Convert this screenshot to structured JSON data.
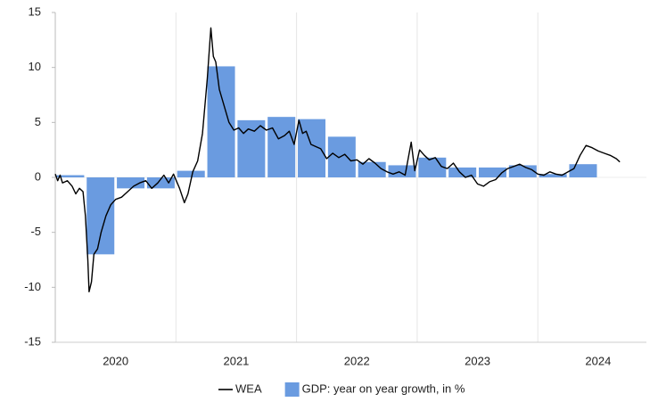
{
  "chart_data": {
    "type": "combo",
    "xlim": [
      2020,
      2024.9
    ],
    "xticks": [
      {
        "value": 2020.5,
        "label": "2020"
      },
      {
        "value": 2021.5,
        "label": "2021"
      },
      {
        "value": 2022.5,
        "label": "2022"
      },
      {
        "value": 2023.5,
        "label": "2023"
      },
      {
        "value": 2024.5,
        "label": "2024"
      }
    ],
    "xgrid": [
      2020,
      2021,
      2022,
      2023,
      2024
    ],
    "ylim": [
      -15,
      15
    ],
    "yticks": [
      -15,
      -10,
      -5,
      0,
      5,
      10,
      15
    ],
    "legend": "bottom",
    "series": [
      {
        "name": "WEA",
        "type": "line",
        "color": "#000000",
        "x": [
          2020.0,
          2020.02,
          2020.04,
          2020.06,
          2020.1,
          2020.14,
          2020.17,
          2020.2,
          2020.23,
          2020.25,
          2020.27,
          2020.28,
          2020.3,
          2020.32,
          2020.35,
          2020.38,
          2020.42,
          2020.46,
          2020.5,
          2020.55,
          2020.6,
          2020.65,
          2020.7,
          2020.75,
          2020.8,
          2020.85,
          2020.9,
          2020.94,
          2020.98,
          2021.03,
          2021.07,
          2021.1,
          2021.14,
          2021.18,
          2021.22,
          2021.26,
          2021.29,
          2021.31,
          2021.33,
          2021.36,
          2021.4,
          2021.44,
          2021.48,
          2021.52,
          2021.56,
          2021.6,
          2021.65,
          2021.7,
          2021.75,
          2021.8,
          2021.85,
          2021.9,
          2021.94,
          2021.98,
          2022.02,
          2022.05,
          2022.08,
          2022.12,
          2022.16,
          2022.2,
          2022.25,
          2022.3,
          2022.35,
          2022.4,
          2022.45,
          2022.5,
          2022.55,
          2022.6,
          2022.65,
          2022.7,
          2022.75,
          2022.8,
          2022.85,
          2022.9,
          2022.95,
          2022.98,
          2023.02,
          2023.06,
          2023.1,
          2023.15,
          2023.2,
          2023.25,
          2023.3,
          2023.35,
          2023.4,
          2023.45,
          2023.5,
          2023.55,
          2023.6,
          2023.65,
          2023.7,
          2023.75,
          2023.8,
          2023.85,
          2023.9,
          2023.95,
          2024.0,
          2024.05,
          2024.1,
          2024.15,
          2024.2,
          2024.25,
          2024.3,
          2024.35,
          2024.4,
          2024.45,
          2024.5,
          2024.55,
          2024.6,
          2024.65,
          2024.68
        ],
        "values": [
          0.3,
          -0.3,
          0.2,
          -0.5,
          -0.3,
          -0.8,
          -1.5,
          -1.0,
          -1.3,
          -3.5,
          -7.5,
          -10.4,
          -9.5,
          -7.0,
          -6.5,
          -5.0,
          -3.5,
          -2.5,
          -2.0,
          -1.8,
          -1.3,
          -0.8,
          -0.5,
          -0.3,
          -1.0,
          -0.5,
          0.2,
          -0.5,
          0.3,
          -1.0,
          -2.3,
          -1.5,
          0.5,
          1.5,
          4.0,
          9.0,
          13.6,
          11.0,
          10.5,
          8.0,
          6.5,
          5.0,
          4.3,
          4.5,
          4.0,
          4.4,
          4.2,
          4.7,
          4.3,
          4.5,
          3.5,
          3.8,
          4.2,
          3.0,
          5.2,
          4.0,
          4.2,
          3.0,
          2.8,
          2.6,
          1.7,
          2.2,
          1.8,
          2.1,
          1.5,
          1.6,
          1.2,
          1.7,
          1.3,
          0.8,
          0.5,
          0.3,
          0.5,
          0.2,
          3.2,
          0.6,
          2.5,
          2.0,
          1.6,
          1.8,
          1.0,
          0.8,
          1.3,
          0.5,
          0.0,
          0.2,
          -0.6,
          -0.8,
          -0.4,
          -0.2,
          0.4,
          0.8,
          1.0,
          1.2,
          0.9,
          0.7,
          0.3,
          0.2,
          0.5,
          0.3,
          0.2,
          0.5,
          0.8,
          2.0,
          2.9,
          2.7,
          2.4,
          2.2,
          2.0,
          1.7,
          1.4
        ]
      },
      {
        "name": "GDP: year on year growth, in %",
        "type": "bar",
        "color": "#6a9be0",
        "x": [
          2020.125,
          2020.375,
          2020.625,
          2020.875,
          2021.125,
          2021.375,
          2021.625,
          2021.875,
          2022.125,
          2022.375,
          2022.625,
          2022.875,
          2023.125,
          2023.375,
          2023.625,
          2023.875,
          2024.125,
          2024.375
        ],
        "values": [
          0.2,
          -7.0,
          -1.0,
          -1.0,
          0.6,
          10.1,
          5.2,
          5.5,
          5.3,
          3.7,
          1.4,
          1.1,
          1.8,
          0.9,
          0.9,
          1.1,
          0.3,
          1.2
        ]
      }
    ]
  }
}
